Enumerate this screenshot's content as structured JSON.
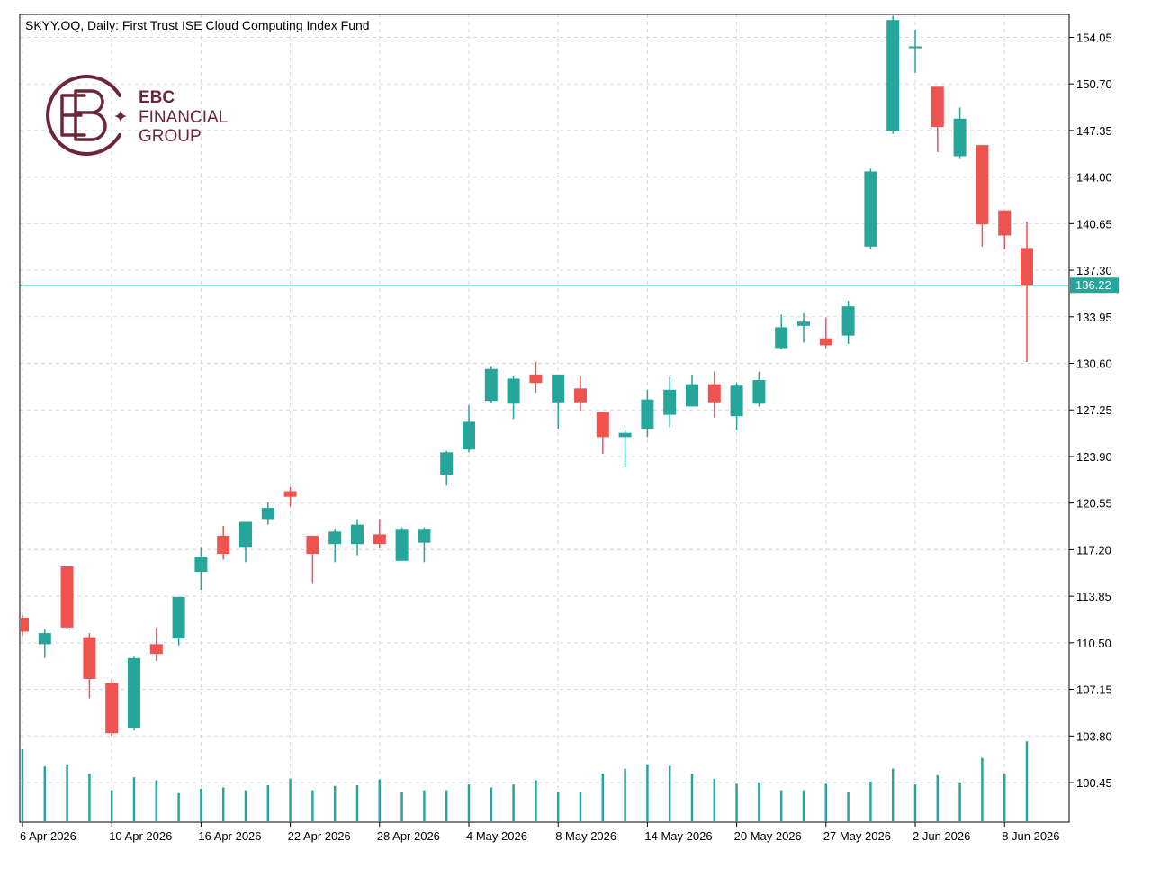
{
  "header": {
    "title": "SKYY.OQ, Daily:  First Trust ISE Cloud Computing Index Fund"
  },
  "logo": {
    "line1": "EBC",
    "line2": "FINANCIAL",
    "line3": "GROUP",
    "color": "#6b2737"
  },
  "colors": {
    "up": "#26a69a",
    "down": "#ef5350",
    "grid": "#d9d9d9",
    "frame": "#000000",
    "price_line": "#26a69a",
    "price_tag_text": "#ffffff"
  },
  "chart_data": {
    "type": "candlestick",
    "symbol": "SKYY.OQ",
    "timeframe": "Daily",
    "current_price": 136.22,
    "ylim": [
      97.6,
      155.7
    ],
    "y_ticks": [
      "154.05",
      "150.70",
      "147.35",
      "144.00",
      "140.65",
      "137.30",
      "133.95",
      "130.60",
      "127.25",
      "123.90",
      "120.55",
      "117.20",
      "113.85",
      "110.50",
      "107.15",
      "103.80",
      "100.45"
    ],
    "x_tick_labels": [
      {
        "index": 0,
        "label": "6 Apr 2026"
      },
      {
        "index": 4,
        "label": "10 Apr 2026"
      },
      {
        "index": 8,
        "label": "16 Apr 2026"
      },
      {
        "index": 12,
        "label": "22 Apr 2026"
      },
      {
        "index": 16,
        "label": "28 Apr 2026"
      },
      {
        "index": 20,
        "label": "4 May 2026"
      },
      {
        "index": 24,
        "label": "8 May 2026"
      },
      {
        "index": 28,
        "label": "14 May 2026"
      },
      {
        "index": 32,
        "label": "20 May 2026"
      },
      {
        "index": 36,
        "label": "27 May 2026"
      },
      {
        "index": 40,
        "label": "2 Jun 2026"
      },
      {
        "index": 44,
        "label": "8 Jun 2026"
      }
    ],
    "candles": [
      {
        "o": 112.3,
        "h": 112.5,
        "l": 111.0,
        "c": 111.3
      },
      {
        "o": 110.4,
        "h": 111.5,
        "l": 109.4,
        "c": 111.2
      },
      {
        "o": 116.0,
        "h": 116.0,
        "l": 111.5,
        "c": 111.6
      },
      {
        "o": 110.9,
        "h": 111.2,
        "l": 106.5,
        "c": 107.9
      },
      {
        "o": 107.6,
        "h": 107.9,
        "l": 103.8,
        "c": 104.0
      },
      {
        "o": 104.4,
        "h": 109.5,
        "l": 104.2,
        "c": 109.4
      },
      {
        "o": 110.4,
        "h": 111.6,
        "l": 109.2,
        "c": 109.7
      },
      {
        "o": 110.8,
        "h": 113.8,
        "l": 110.3,
        "c": 113.8
      },
      {
        "o": 115.6,
        "h": 117.4,
        "l": 114.3,
        "c": 116.7
      },
      {
        "o": 118.2,
        "h": 118.9,
        "l": 116.5,
        "c": 116.9
      },
      {
        "o": 117.4,
        "h": 119.2,
        "l": 116.3,
        "c": 119.2
      },
      {
        "o": 119.4,
        "h": 120.6,
        "l": 119.0,
        "c": 120.2
      },
      {
        "o": 121.4,
        "h": 121.7,
        "l": 120.3,
        "c": 121.0
      },
      {
        "o": 118.2,
        "h": 118.2,
        "l": 114.8,
        "c": 116.9
      },
      {
        "o": 117.6,
        "h": 118.7,
        "l": 116.3,
        "c": 118.5
      },
      {
        "o": 117.6,
        "h": 119.4,
        "l": 116.8,
        "c": 119.0
      },
      {
        "o": 118.3,
        "h": 119.4,
        "l": 117.3,
        "c": 117.6
      },
      {
        "o": 116.4,
        "h": 118.8,
        "l": 116.4,
        "c": 118.7
      },
      {
        "o": 117.7,
        "h": 118.8,
        "l": 116.3,
        "c": 118.7
      },
      {
        "o": 122.6,
        "h": 124.3,
        "l": 121.8,
        "c": 124.2
      },
      {
        "o": 124.4,
        "h": 127.6,
        "l": 124.2,
        "c": 126.4
      },
      {
        "o": 127.9,
        "h": 130.4,
        "l": 127.8,
        "c": 130.2
      },
      {
        "o": 127.7,
        "h": 129.7,
        "l": 126.6,
        "c": 129.5
      },
      {
        "o": 129.8,
        "h": 130.7,
        "l": 128.5,
        "c": 129.2
      },
      {
        "o": 127.8,
        "h": 129.8,
        "l": 125.9,
        "c": 129.8
      },
      {
        "o": 128.8,
        "h": 129.7,
        "l": 127.2,
        "c": 127.8
      },
      {
        "o": 127.1,
        "h": 127.1,
        "l": 124.1,
        "c": 125.3
      },
      {
        "o": 125.3,
        "h": 125.8,
        "l": 123.1,
        "c": 125.6
      },
      {
        "o": 125.9,
        "h": 128.7,
        "l": 125.3,
        "c": 128.0
      },
      {
        "o": 126.9,
        "h": 129.6,
        "l": 126.0,
        "c": 128.7
      },
      {
        "o": 127.5,
        "h": 129.8,
        "l": 127.5,
        "c": 129.1
      },
      {
        "o": 129.1,
        "h": 130.0,
        "l": 126.7,
        "c": 127.8
      },
      {
        "o": 126.8,
        "h": 129.2,
        "l": 125.8,
        "c": 129.0
      },
      {
        "o": 127.7,
        "h": 130.0,
        "l": 127.5,
        "c": 129.4
      },
      {
        "o": 131.7,
        "h": 134.1,
        "l": 131.6,
        "c": 133.2
      },
      {
        "o": 133.3,
        "h": 134.2,
        "l": 132.1,
        "c": 133.6
      },
      {
        "o": 132.4,
        "h": 133.9,
        "l": 131.7,
        "c": 131.9
      },
      {
        "o": 132.6,
        "h": 135.1,
        "l": 132.0,
        "c": 134.7
      },
      {
        "o": 139.0,
        "h": 144.6,
        "l": 138.8,
        "c": 144.4
      },
      {
        "o": 147.3,
        "h": 155.6,
        "l": 147.1,
        "c": 155.3
      },
      {
        "o": 153.4,
        "h": 154.6,
        "l": 151.5,
        "c": 153.4
      },
      {
        "o": 150.5,
        "h": 150.5,
        "l": 145.8,
        "c": 147.6
      },
      {
        "o": 145.5,
        "h": 149.0,
        "l": 145.3,
        "c": 148.2
      },
      {
        "o": 146.3,
        "h": 146.3,
        "l": 139.0,
        "c": 140.6
      },
      {
        "o": 141.6,
        "h": 141.6,
        "l": 138.8,
        "c": 139.8
      },
      {
        "o": 138.9,
        "h": 140.8,
        "l": 130.7,
        "c": 136.2
      }
    ],
    "volume": [
      1.0,
      0.76,
      0.79,
      0.66,
      0.43,
      0.61,
      0.57,
      0.39,
      0.45,
      0.47,
      0.43,
      0.5,
      0.59,
      0.43,
      0.49,
      0.5,
      0.58,
      0.4,
      0.43,
      0.43,
      0.51,
      0.47,
      0.51,
      0.57,
      0.41,
      0.4,
      0.66,
      0.73,
      0.79,
      0.77,
      0.66,
      0.59,
      0.52,
      0.54,
      0.43,
      0.43,
      0.52,
      0.4,
      0.55,
      0.73,
      0.51,
      0.64,
      0.54,
      0.88,
      0.66,
      1.11
    ]
  }
}
